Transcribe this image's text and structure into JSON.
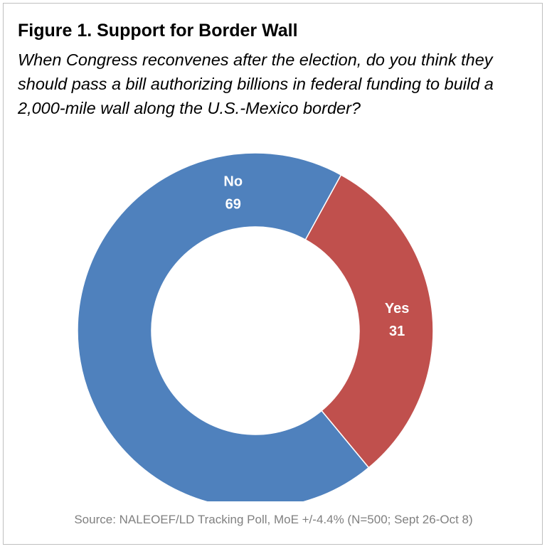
{
  "chart_data": {
    "type": "pie",
    "variant": "donut",
    "title": "Figure 1. Support for Border Wall",
    "subtitle": "When Congress reconvenes after the election, do you think they should pass a bill authorizing billions in federal funding to build a 2,000-mile wall along the U.S.-Mexico border?",
    "slices": [
      {
        "label": "Yes",
        "value": 31,
        "color": "#C0504D"
      },
      {
        "label": "No",
        "value": 69,
        "color": "#4F81BD"
      }
    ],
    "value_labels": [
      "31",
      "69"
    ],
    "source": "Source: NALEOEF/LD Tracking Poll, MoE +/-4.4% (N=500; Sept 26-Oct 8)"
  }
}
